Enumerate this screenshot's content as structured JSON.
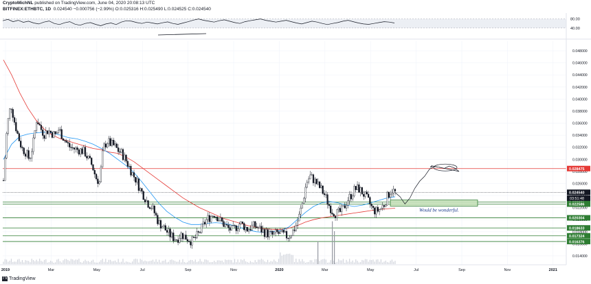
{
  "header": {
    "publisher": "CryptoMichNL",
    "published_text": " published on TradingView.com, June 04, 2020 20:08:13 UTC",
    "symbol_line": "BITFINEX:ETHBTC, 1D",
    "price_line": "0.024540  −0.000756 (−2.99%)  O:0.025316  H:0.025490  L:0.024525  C:0.024540"
  },
  "footer": {
    "brand": "TradingView",
    "logo": "tradingview-logo-icon"
  },
  "chart_data": [
    {
      "type": "line",
      "panel": "oscillator",
      "y_ticks": [
        "80.00",
        "40.00"
      ],
      "ylim": [
        0,
        100
      ],
      "band": [
        40,
        80
      ],
      "series": [
        {
          "values": [
            72,
            78,
            68,
            74,
            65,
            70,
            62,
            58,
            66,
            71,
            60,
            55,
            63,
            68,
            57,
            52,
            60,
            64,
            56,
            50,
            58,
            62,
            55,
            66,
            72,
            70,
            64,
            60,
            66,
            62,
            58,
            63,
            67,
            60,
            56,
            62,
            68,
            75,
            80,
            74,
            70,
            66,
            72,
            76,
            70,
            64,
            60,
            68,
            72,
            76,
            80,
            74,
            70,
            66,
            70,
            74,
            68,
            62,
            58,
            64,
            70,
            66,
            60,
            55,
            60,
            64,
            70,
            74,
            68,
            62,
            58,
            56,
            60,
            64,
            68,
            66,
            62
          ]
        }
      ],
      "color": "#131722"
    },
    {
      "type": "candlestick",
      "panel": "price",
      "title": "",
      "xlabel": "",
      "ylabel": "",
      "x_ticks": [
        "2019",
        "Mar",
        "May",
        "Jul",
        "Sep",
        "Nov",
        "2020",
        "Mar",
        "May",
        "Jul",
        "Sep",
        "Nov",
        "2021"
      ],
      "y_ticks": [
        "0.048000",
        "0.046000",
        "0.044000",
        "0.042000",
        "0.040000",
        "0.038000",
        "0.036000",
        "0.034000",
        "0.032000",
        "0.030000",
        "0.028000",
        "0.026000",
        "0.024000",
        "0.022000",
        "0.020000",
        "0.018000",
        "0.016000",
        "0.014000"
      ],
      "ylim": [
        0.0132,
        0.0496
      ],
      "close_path": [
        0.0265,
        0.0355,
        0.0392,
        0.0362,
        0.0338,
        0.0318,
        0.0312,
        0.03,
        0.0325,
        0.0368,
        0.0352,
        0.0342,
        0.0348,
        0.0344,
        0.034,
        0.035,
        0.0338,
        0.0328,
        0.032,
        0.0318,
        0.0316,
        0.0315,
        0.0312,
        0.03,
        0.029,
        0.027,
        0.0262,
        0.0318,
        0.033,
        0.0326,
        0.0322,
        0.0315,
        0.031,
        0.03,
        0.0288,
        0.0275,
        0.0265,
        0.025,
        0.024,
        0.0228,
        0.0222,
        0.021,
        0.0195,
        0.019,
        0.0182,
        0.0175,
        0.017,
        0.0168,
        0.0176,
        0.0172,
        0.0168,
        0.0164,
        0.017,
        0.0178,
        0.019,
        0.02,
        0.0205,
        0.021,
        0.0204,
        0.0196,
        0.019,
        0.0185,
        0.0182,
        0.0188,
        0.0194,
        0.019,
        0.0184,
        0.0188,
        0.019,
        0.0186,
        0.0182,
        0.0178,
        0.0176,
        0.0174,
        0.0178,
        0.0176,
        0.0174,
        0.0172,
        0.0178,
        0.0188,
        0.0205,
        0.023,
        0.0262,
        0.0272,
        0.0266,
        0.0258,
        0.025,
        0.024,
        0.0225,
        0.0214,
        0.021,
        0.0212,
        0.0218,
        0.0232,
        0.024,
        0.025,
        0.0252,
        0.0246,
        0.0238,
        0.0228,
        0.0216,
        0.0214,
        0.0218,
        0.0225,
        0.024,
        0.025,
        0.0245
      ],
      "ma_fast": [
        0.03,
        0.0325,
        0.0338,
        0.0342,
        0.0344,
        0.0345,
        0.0344,
        0.034,
        0.0336,
        0.0334,
        0.033,
        0.0325,
        0.0318,
        0.031,
        0.03,
        0.029,
        0.0278,
        0.0262,
        0.0245,
        0.0228,
        0.0214,
        0.0204,
        0.0196,
        0.0192,
        0.0192,
        0.0194,
        0.0195,
        0.0194,
        0.0191,
        0.0187,
        0.0183,
        0.018,
        0.0179,
        0.018,
        0.0182,
        0.0188,
        0.02,
        0.0212,
        0.0222,
        0.0228,
        0.023,
        0.0228,
        0.0224,
        0.0222,
        0.0224,
        0.0228,
        0.0232,
        0.0236,
        0.0238
      ],
      "ma_slow": [
        0.0465,
        0.044,
        0.041,
        0.0385,
        0.0365,
        0.035,
        0.034,
        0.0334,
        0.033,
        0.0326,
        0.0322,
        0.0318,
        0.0316,
        0.0312,
        0.031,
        0.0304,
        0.0296,
        0.0286,
        0.0276,
        0.0266,
        0.0256,
        0.0246,
        0.0236,
        0.0228,
        0.022,
        0.0214,
        0.0208,
        0.0202,
        0.0198,
        0.0194,
        0.019,
        0.0187,
        0.0185,
        0.0184,
        0.0184,
        0.0186,
        0.019,
        0.0196,
        0.02,
        0.0203,
        0.0205,
        0.0207,
        0.0209,
        0.0211,
        0.0213,
        0.0215,
        0.0217,
        0.0218,
        0.0219
      ],
      "projection": [
        0.0245,
        0.0238,
        0.0226,
        0.0236,
        0.0252,
        0.0264,
        0.0272,
        0.0284,
        0.0288,
        0.0287,
        0.0285,
        0.0289,
        0.0286,
        0.028
      ],
      "horizontal_levels": [
        {
          "value": "0.028475",
          "color": "#e53935",
          "kind": "resistance"
        },
        {
          "value": "0.024540",
          "color": "#131722",
          "kind": "last"
        },
        {
          "value": "0.022925",
          "color": "#2e7d32",
          "kind": "support"
        },
        {
          "value": "0.022586",
          "color": "#2e7d32",
          "kind": "support"
        },
        {
          "value": "0.020304",
          "color": "#2e7d32",
          "kind": "support"
        },
        {
          "value": "0.018633",
          "color": "#2e7d32",
          "kind": "support"
        },
        {
          "value": "0.017324",
          "color": "#2e7d32",
          "kind": "support"
        },
        {
          "value": "0.016376",
          "color": "#2e7d32",
          "kind": "support"
        }
      ],
      "countdown": "03:51:48",
      "zone_box": {
        "from": 0.022586,
        "to": 0.022925,
        "color": "#c5e1b5"
      },
      "annotations": [
        {
          "text": "Would be wonderful.",
          "color": "#1a3a8a"
        }
      ],
      "colors": {
        "up": "#ffffff",
        "down": "#131722",
        "ma_fast": "#2196f3",
        "ma_slow": "#e53935",
        "grid": "#f0f3fa",
        "axis_text": "#131722"
      }
    }
  ]
}
